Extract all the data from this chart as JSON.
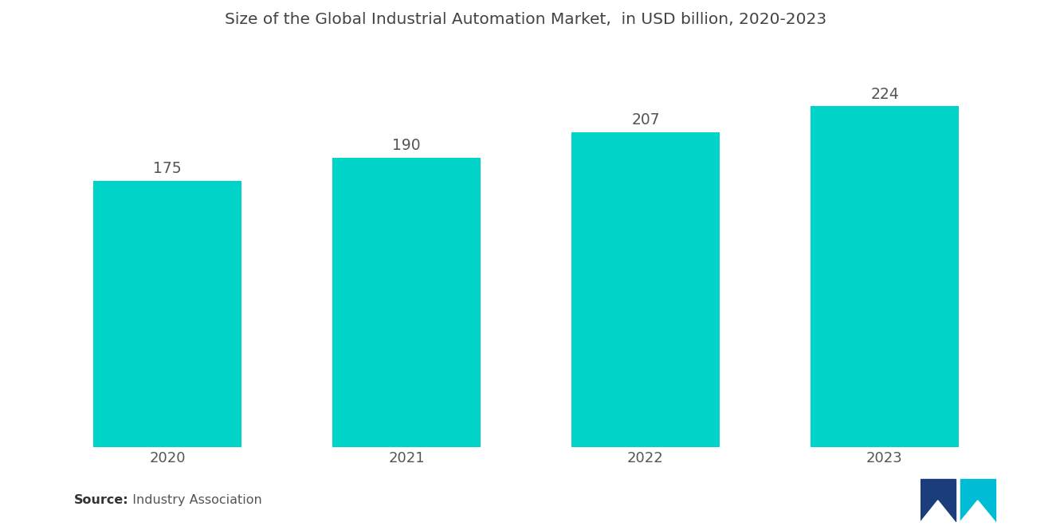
{
  "title": "Size of the Global Industrial Automation Market,  in USD billion, 2020-2023",
  "categories": [
    "2020",
    "2021",
    "2022",
    "2023"
  ],
  "values": [
    175,
    190,
    207,
    224
  ],
  "bar_color": "#00D4C8",
  "label_color": "#555555",
  "title_color": "#444444",
  "background_color": "#FFFFFF",
  "source_bold": "Source:",
  "source_normal": "  Industry Association",
  "ylim": [
    0,
    265
  ],
  "bar_width": 0.62,
  "title_fontsize": 14.5,
  "label_fontsize": 13.5,
  "tick_fontsize": 13,
  "source_fontsize": 11.5
}
